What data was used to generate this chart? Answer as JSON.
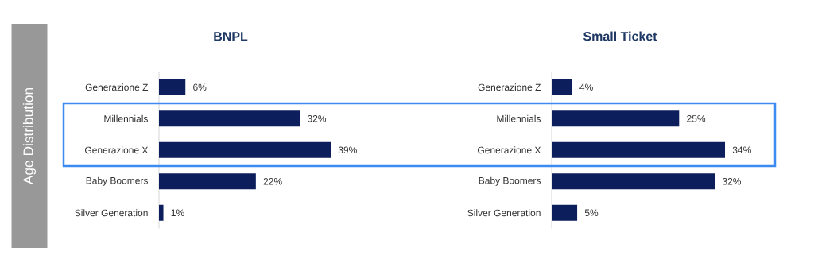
{
  "chart_data": [
    {
      "type": "bar",
      "orientation": "horizontal",
      "title": "BNPL",
      "ylabel": "Age Distribution",
      "categories": [
        "Generazione Z",
        "Millennials",
        "Generazione X",
        "Baby Boomers",
        "Silver Generation"
      ],
      "values": [
        6,
        32,
        39,
        22,
        1
      ],
      "value_labels": [
        "6%",
        "32%",
        "39%",
        "22%",
        "1%"
      ],
      "color": "#0c1e5b"
    },
    {
      "type": "bar",
      "orientation": "horizontal",
      "title": "Small Ticket",
      "categories": [
        "Generazione Z",
        "Millennials",
        "Generazione X",
        "Baby Boomers",
        "Silver Generation"
      ],
      "values": [
        4,
        25,
        34,
        32,
        5
      ],
      "value_labels": [
        "4%",
        "25%",
        "34%",
        "32%",
        "5%"
      ],
      "color": "#0c1e5b"
    }
  ]
}
